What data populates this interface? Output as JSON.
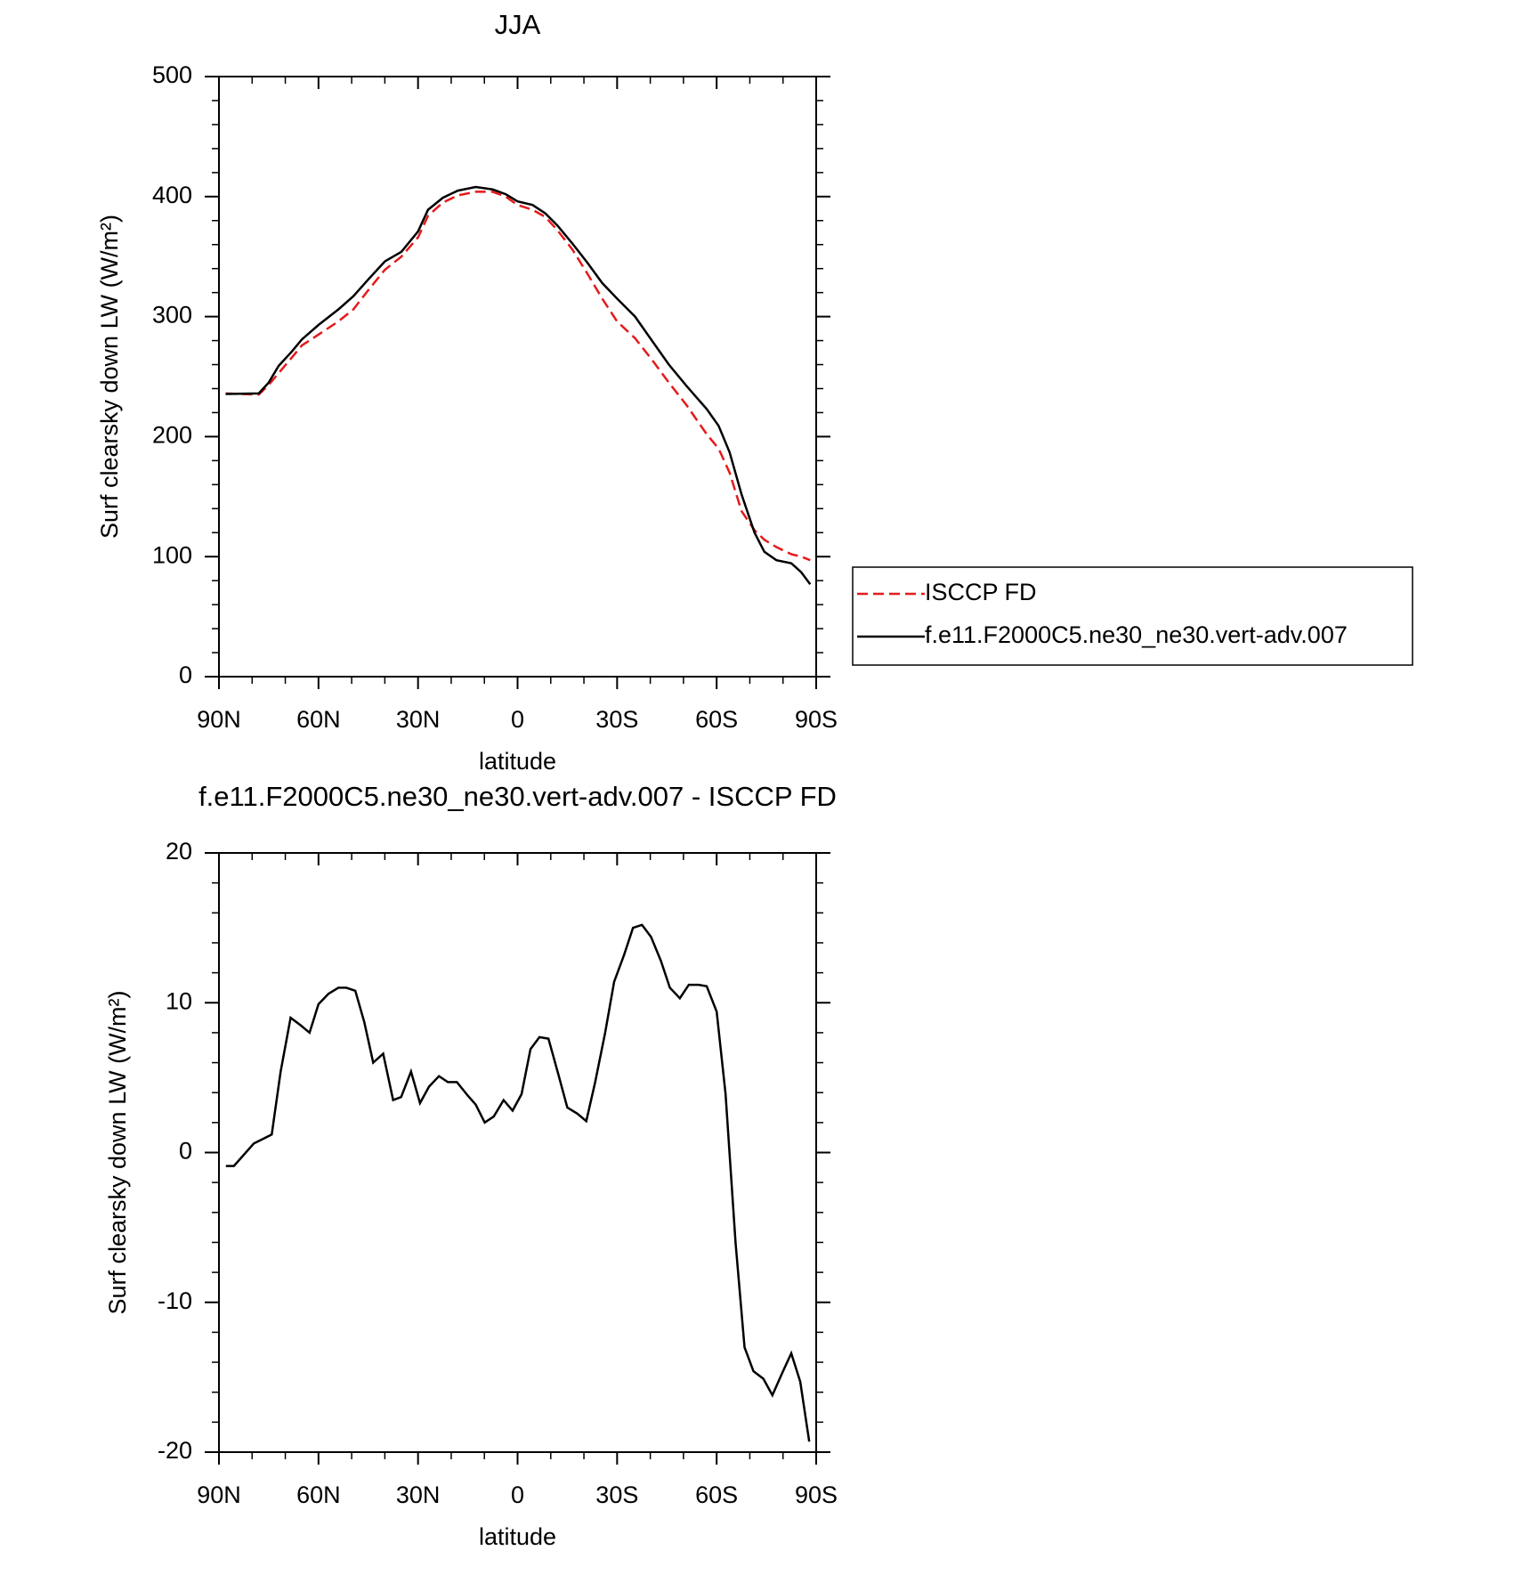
{
  "chart_data": [
    {
      "type": "line",
      "title": "JJA",
      "xlabel": "latitude",
      "ylabel": "Surf clearsky down LW (W/m²)",
      "xlim": [
        90,
        -90
      ],
      "xticks": [
        {
          "value": 90,
          "label": "90N"
        },
        {
          "value": 60,
          "label": "60N"
        },
        {
          "value": 30,
          "label": "30N"
        },
        0,
        {
          "value": -30,
          "label": "30S"
        },
        {
          "value": -60,
          "label": "60S"
        },
        {
          "value": -90,
          "label": "90S"
        }
      ],
      "ylim": [
        0,
        500
      ],
      "yticks": [
        0,
        100,
        200,
        300,
        400,
        500
      ],
      "x": [
        88,
        78,
        75,
        72,
        68,
        65,
        60,
        54,
        49.5,
        45,
        40,
        35,
        30,
        27,
        22.5,
        18,
        12.6,
        7.5,
        3.6,
        0,
        -4.5,
        -8.4,
        -12,
        -16.5,
        -21,
        -25.5,
        -30,
        -35.4,
        -40.5,
        -45.6,
        -51,
        -57,
        -60.6,
        -63.9,
        -67.5,
        -71.4,
        -74.4,
        -78,
        -82.5,
        -85.5,
        -88.2
      ],
      "series": [
        {
          "name": "ISCCP FD",
          "color": "#e41a1c",
          "linestyle": "dashed",
          "values": [
            236,
            235,
            243,
            253,
            266,
            276,
            285,
            296,
            306,
            322,
            339,
            350,
            366,
            384,
            395,
            401,
            404,
            404,
            400,
            393,
            389,
            383,
            372,
            356,
            336,
            315,
            296,
            282,
            264,
            245,
            226,
            202,
            190,
            170,
            138,
            122,
            114,
            108,
            102,
            100,
            97
          ]
        },
        {
          "name": "f.e11.F2000C5.ne30_ne30.vert-adv.007",
          "color": "#000000",
          "linestyle": "solid",
          "values": [
            235.5,
            236,
            245,
            259,
            271,
            281,
            293,
            306,
            317,
            331,
            346,
            354,
            371,
            389,
            399,
            405,
            408,
            406,
            402,
            396,
            393,
            386,
            376,
            361,
            345,
            328,
            315,
            300,
            280,
            260,
            242,
            223,
            209,
            187,
            152,
            120,
            104,
            97,
            94.5,
            87,
            77
          ]
        }
      ],
      "legend": "right"
    },
    {
      "type": "line",
      "title": "f.e11.F2000C5.ne30_ne30.vert-adv.007 - ISCCP FD",
      "xlabel": "latitude",
      "ylabel": "Surf clearsky down LW (W/m²)",
      "xlim": [
        90,
        -90
      ],
      "xticks": [
        {
          "value": 90,
          "label": "90N"
        },
        {
          "value": 60,
          "label": "60N"
        },
        {
          "value": 30,
          "label": "30N"
        },
        0,
        {
          "value": -30,
          "label": "30S"
        },
        {
          "value": -60,
          "label": "60S"
        },
        {
          "value": -90,
          "label": "90S"
        }
      ],
      "ylim": [
        -20,
        20
      ],
      "yticks": [
        -20,
        -10,
        0,
        10,
        20
      ],
      "x": [
        87.9,
        85.5,
        79.5,
        74.1,
        71.4,
        68.4,
        65.4,
        62.7,
        60,
        57,
        54,
        51.6,
        48.9,
        46.2,
        43.5,
        40.5,
        37.5,
        35.1,
        32.1,
        29.4,
        26.7,
        23.7,
        21,
        18.3,
        15,
        12.6,
        9.9,
        7.2,
        4.2,
        1.5,
        -1.2,
        -3.9,
        -6.6,
        -9.3,
        -12.3,
        -15,
        -18,
        -20.7,
        -23.4,
        -26.4,
        -29.1,
        -32.1,
        -34.8,
        -37.5,
        -40.2,
        -43.2,
        -45.9,
        -48.9,
        -51.6,
        -54.6,
        -57,
        -60,
        -62.7,
        -65.7,
        -68.4,
        -71.1,
        -74.1,
        -76.8,
        -79.8,
        -82.5,
        -85.2,
        -87.9
      ],
      "series": [
        {
          "color": "#000000",
          "linestyle": "solid",
          "values": [
            -0.9,
            -0.9,
            0.6,
            1.2,
            5.4,
            9.0,
            8.5,
            8.0,
            9.9,
            10.6,
            11.0,
            11.0,
            10.8,
            8.7,
            6.0,
            6.6,
            3.5,
            3.7,
            5.4,
            3.3,
            4.4,
            5.1,
            4.7,
            4.7,
            3.8,
            3.2,
            2.0,
            2.4,
            3.5,
            2.8,
            3.9,
            6.9,
            7.7,
            7.6,
            5.2,
            3.0,
            2.6,
            2.1,
            4.7,
            8.0,
            11.4,
            13.2,
            15.0,
            15.2,
            14.4,
            12.8,
            11.0,
            10.3,
            11.2,
            11.2,
            11.1,
            9.4,
            3.9,
            -6.0,
            -13.0,
            -14.6,
            -15.1,
            -16.2,
            -14.7,
            -13.4,
            -15.3,
            -19.3
          ]
        }
      ]
    }
  ]
}
